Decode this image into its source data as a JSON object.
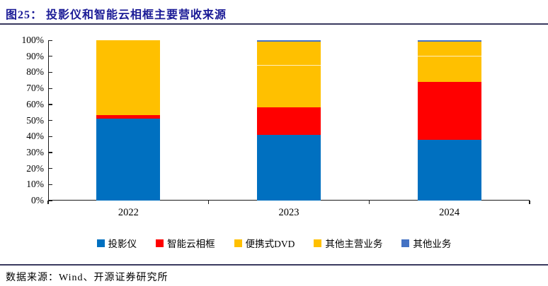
{
  "header": {
    "title": "图25：  投影仪和智能云相框主要营收来源"
  },
  "footer": {
    "source": "数据来源：Wind、开源证券研究所"
  },
  "colors": {
    "title_navy": "#1a1a96",
    "rule": "#3a3a5f",
    "axis": "#1a1a1a",
    "projector_blue": "#0070C0",
    "frame_red": "#FF0000",
    "dvd_gold": "#FFC000",
    "other_main_gold": "#FFC000",
    "other_slate": "#4472C4"
  },
  "chart_data": {
    "type": "bar",
    "stacked": true,
    "percent_stacked": true,
    "title": "投影仪和智能云相框主要营收来源",
    "xlabel": "",
    "ylabel": "",
    "ylim": [
      0,
      100
    ],
    "grid": false,
    "legend_position": "bottom",
    "categories": [
      "2022",
      "2023",
      "2024"
    ],
    "yticks": [
      "0%",
      "10%",
      "20%",
      "30%",
      "40%",
      "50%",
      "60%",
      "70%",
      "80%",
      "90%",
      "100%"
    ],
    "series": [
      {
        "name": "投影仪",
        "color": "#0070C0",
        "values": [
          51,
          41,
          38
        ]
      },
      {
        "name": "智能云相框",
        "color": "#FF0000",
        "values": [
          2.5,
          17,
          36
        ]
      },
      {
        "name": "便携式DVD",
        "color": "#FFC000",
        "values": [
          46.5,
          26,
          16
        ]
      },
      {
        "name": "其他主营业务",
        "color": "#FFC000",
        "values": [
          0,
          15,
          9
        ]
      },
      {
        "name": "其他业务",
        "color": "#4472C4",
        "values": [
          0,
          1,
          1
        ]
      }
    ]
  }
}
